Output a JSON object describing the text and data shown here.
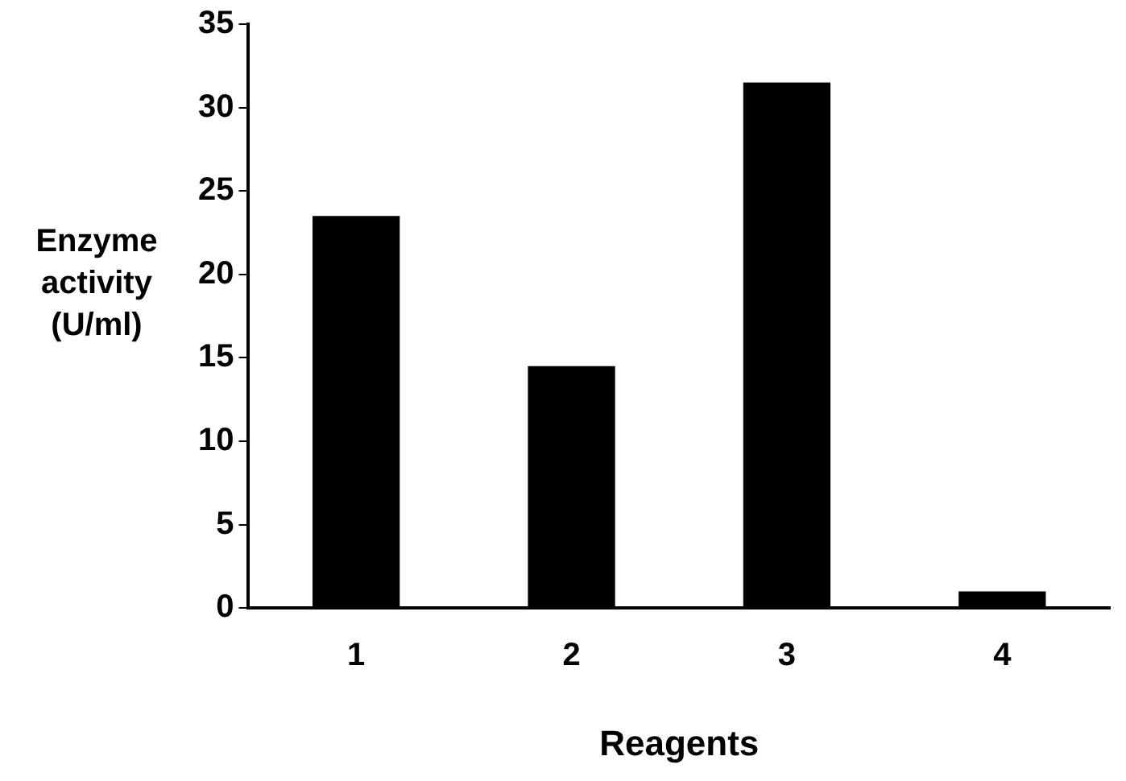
{
  "chart_data": {
    "type": "bar",
    "xlabel": "Reagents",
    "ylabel": "Enzyme activity (U/ml)",
    "categories": [
      "1",
      "2",
      "3",
      "4"
    ],
    "values": [
      23.5,
      14.5,
      31.5,
      1
    ],
    "color": "#000000",
    "ylim": [
      0,
      35
    ],
    "yticks": [
      0,
      5,
      10,
      15,
      20,
      25,
      30,
      35
    ],
    "grid": false,
    "legend": false
  }
}
